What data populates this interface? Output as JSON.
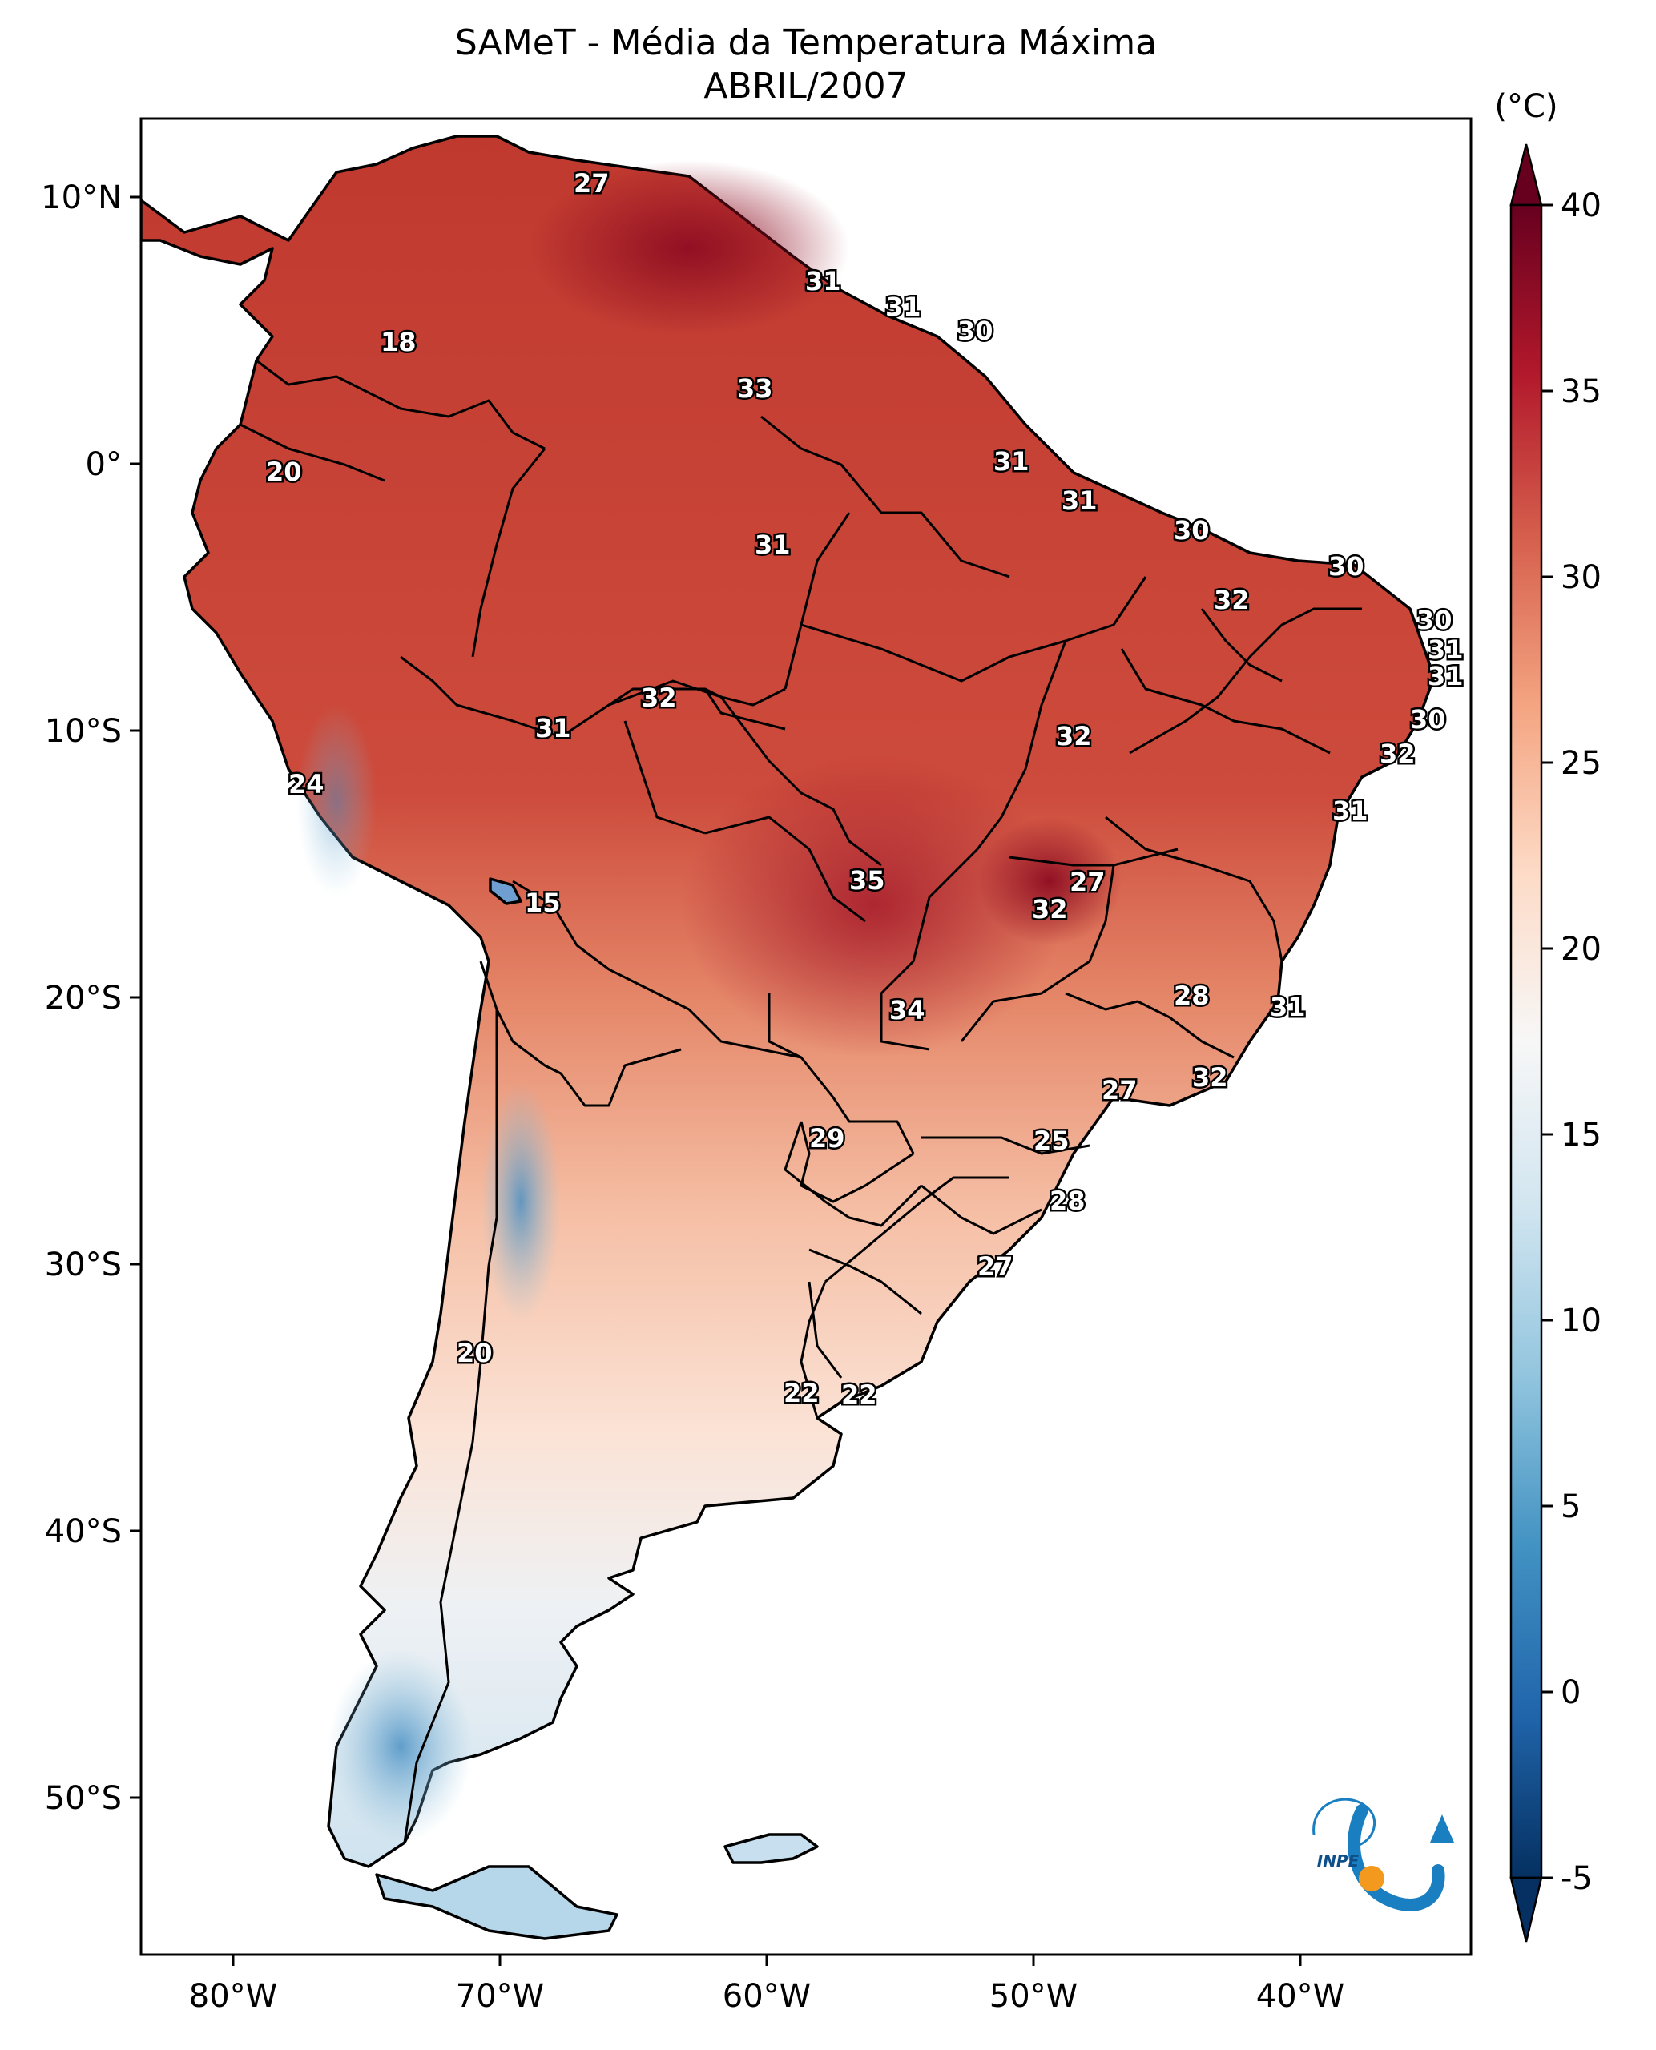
{
  "title": {
    "line1": "SAMeT - Média da Temperatura Máxima",
    "line2": "ABRIL/2007"
  },
  "axes": {
    "lon_ticks": [
      "80°W",
      "70°W",
      "60°W",
      "50°W",
      "40°W"
    ],
    "lat_ticks": [
      "10°N",
      "0°",
      "10°S",
      "20°S",
      "30°S",
      "40°S",
      "50°S"
    ]
  },
  "colorbar": {
    "unit_label": "(°C)",
    "ticks": [
      "40",
      "35",
      "30",
      "25",
      "20",
      "15",
      "10",
      "5",
      "0",
      "-5"
    ],
    "min": -5,
    "max": 40,
    "extend": "both",
    "colormap": "RdBu_r",
    "colors": [
      "#053061",
      "#2166ac",
      "#4393c3",
      "#92c5de",
      "#d1e5f0",
      "#f7f7f7",
      "#fddbc7",
      "#f4a582",
      "#d6604d",
      "#b2182b",
      "#67001f"
    ]
  },
  "isotherm_labels": [
    {
      "text": "27"
    },
    {
      "text": "18"
    },
    {
      "text": "20"
    },
    {
      "text": "31"
    },
    {
      "text": "31"
    },
    {
      "text": "30"
    },
    {
      "text": "33"
    },
    {
      "text": "31"
    },
    {
      "text": "31"
    },
    {
      "text": "30"
    },
    {
      "text": "31"
    },
    {
      "text": "30"
    },
    {
      "text": "32"
    },
    {
      "text": "30"
    },
    {
      "text": "31"
    },
    {
      "text": "31"
    },
    {
      "text": "32"
    },
    {
      "text": "31"
    },
    {
      "text": "30"
    },
    {
      "text": "32"
    },
    {
      "text": "24"
    },
    {
      "text": "32"
    },
    {
      "text": "31"
    },
    {
      "text": "15"
    },
    {
      "text": "35"
    },
    {
      "text": "27"
    },
    {
      "text": "32"
    },
    {
      "text": "34"
    },
    {
      "text": "28"
    },
    {
      "text": "31"
    },
    {
      "text": "32"
    },
    {
      "text": "27"
    },
    {
      "text": "29"
    },
    {
      "text": "25"
    },
    {
      "text": "28"
    },
    {
      "text": "27"
    },
    {
      "text": "20"
    },
    {
      "text": "22"
    },
    {
      "text": "22"
    }
  ],
  "logo": {
    "text": "INPE"
  }
}
